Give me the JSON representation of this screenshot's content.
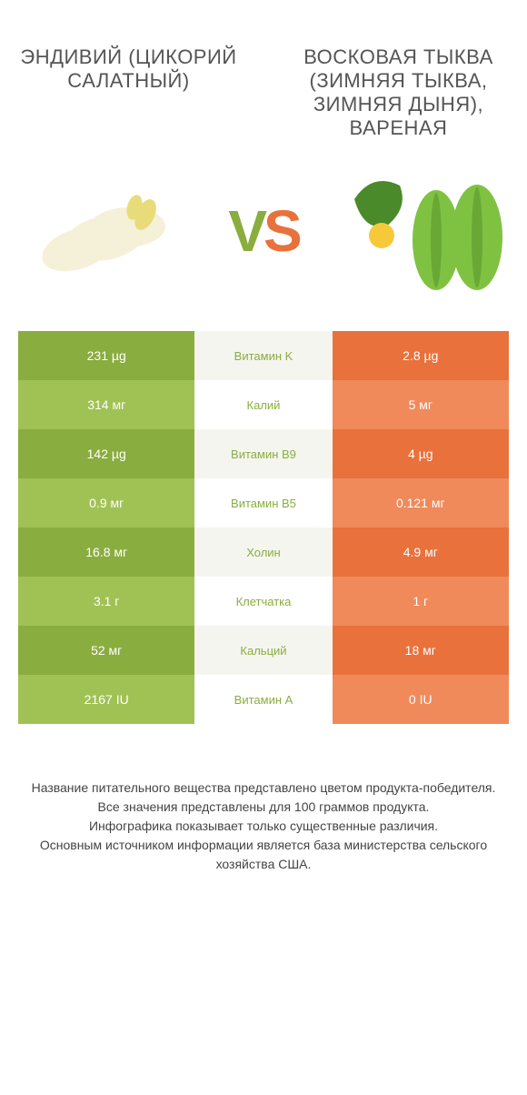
{
  "header": {
    "left_title": "ЭНДИВИЙ (ЦИКОРИЙ САЛАТНЫЙ)",
    "right_title": "ВОСКОВАЯ ТЫКВА (ЗИМНЯЯ ТЫКВА, ЗИМНЯЯ ДЫНЯ), ВАРЕНАЯ",
    "vs_v": "V",
    "vs_s": "S"
  },
  "colors": {
    "left_primary": "#8aad3f",
    "left_secondary": "#a0c254",
    "right_primary": "#e9713c",
    "right_secondary": "#f08a5a",
    "mid_bg": "#f5f5f0"
  },
  "comparison": {
    "type": "table",
    "columns": [
      "left_value",
      "nutrient",
      "right_value",
      "winner"
    ],
    "rows": [
      {
        "left": "231 µg",
        "mid": "Витамин K",
        "right": "2.8 µg",
        "winner": "left"
      },
      {
        "left": "314 мг",
        "mid": "Калий",
        "right": "5 мг",
        "winner": "left"
      },
      {
        "left": "142 µg",
        "mid": "Витамин B9",
        "right": "4 µg",
        "winner": "left"
      },
      {
        "left": "0.9 мг",
        "mid": "Витамин B5",
        "right": "0.121 мг",
        "winner": "left"
      },
      {
        "left": "16.8 мг",
        "mid": "Холин",
        "right": "4.9 мг",
        "winner": "left"
      },
      {
        "left": "3.1 г",
        "mid": "Клетчатка",
        "right": "1 г",
        "winner": "left"
      },
      {
        "left": "52 мг",
        "mid": "Кальций",
        "right": "18 мг",
        "winner": "left"
      },
      {
        "left": "2167 IU",
        "mid": "Витамин A",
        "right": "0 IU",
        "winner": "left"
      }
    ]
  },
  "footer": {
    "line1": "Название питательного вещества представлено цветом продукта-победителя.",
    "line2": "Все значения представлены для 100 граммов продукта.",
    "line3": "Инфографика показывает только существенные различия.",
    "line4": "Основным источником информации является база министерства сельского хозяйства США."
  }
}
